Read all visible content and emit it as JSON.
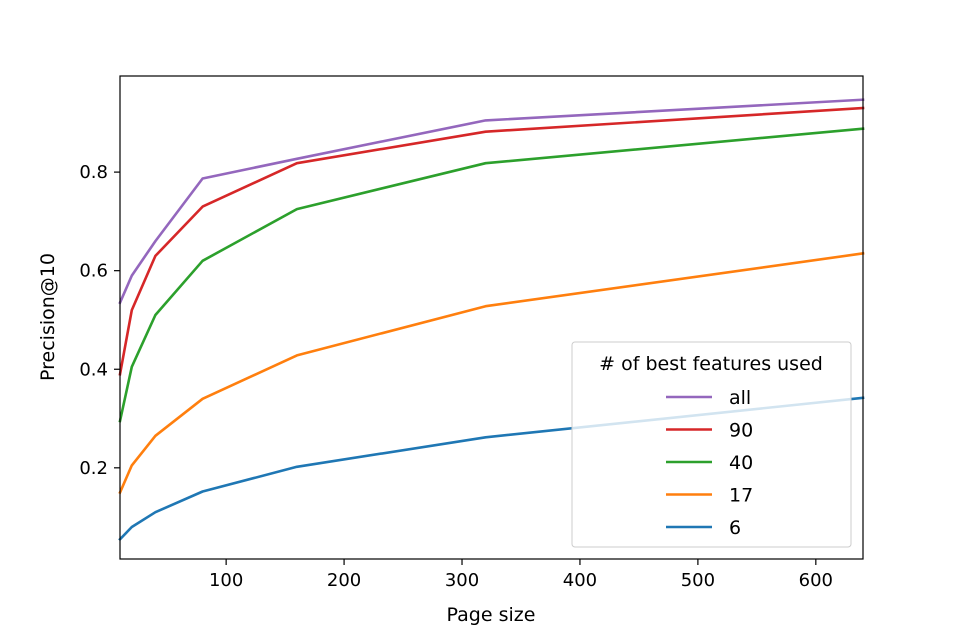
{
  "chart_data": {
    "type": "line",
    "title": "",
    "xlabel": "Page size",
    "ylabel": "Precision@10",
    "xlim": [
      10,
      640
    ],
    "ylim": [
      0.015,
      0.995
    ],
    "xticks": [
      100,
      200,
      300,
      400,
      500,
      600
    ],
    "yticks": [
      0.2,
      0.4,
      0.6,
      0.8
    ],
    "x": [
      10,
      20,
      40,
      80,
      160,
      320,
      640
    ],
    "grid": false,
    "legend": {
      "title": "# of best features used",
      "placement": "lower-right"
    },
    "series": [
      {
        "name": "all",
        "color": "#9467bd",
        "values": [
          0.535,
          0.59,
          0.66,
          0.787,
          0.827,
          0.905,
          0.947
        ]
      },
      {
        "name": "90",
        "color": "#d62728",
        "values": [
          0.39,
          0.52,
          0.63,
          0.73,
          0.818,
          0.882,
          0.93
        ]
      },
      {
        "name": "40",
        "color": "#2ca02c",
        "values": [
          0.295,
          0.405,
          0.51,
          0.62,
          0.725,
          0.818,
          0.888
        ]
      },
      {
        "name": "17",
        "color": "#ff7f0e",
        "values": [
          0.15,
          0.205,
          0.265,
          0.34,
          0.428,
          0.528,
          0.635
        ]
      },
      {
        "name": "6",
        "color": "#1f77b4",
        "values": [
          0.055,
          0.08,
          0.11,
          0.152,
          0.202,
          0.262,
          0.342
        ]
      }
    ]
  }
}
